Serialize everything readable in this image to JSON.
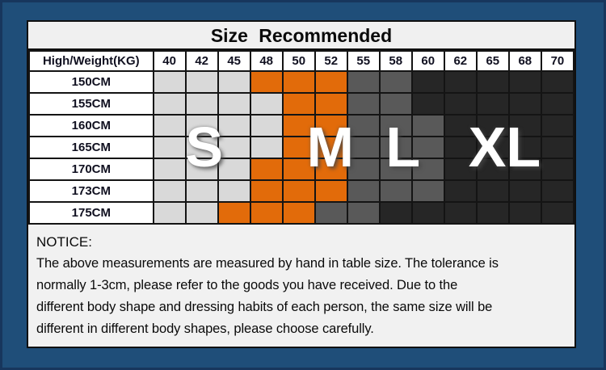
{
  "chart_data": {
    "type": "table",
    "title": "Size Recommended",
    "corner_label": "High/Weight(KG)",
    "weight_columns_kg": [
      "40",
      "42",
      "45",
      "48",
      "50",
      "52",
      "55",
      "58",
      "60",
      "62",
      "65",
      "68",
      "70"
    ],
    "height_rows": [
      "150CM",
      "155CM",
      "160CM",
      "165CM",
      "170CM",
      "173CM",
      "175CM"
    ],
    "size_matrix": [
      [
        "S",
        "S",
        "S",
        "M",
        "M",
        "M",
        "L",
        "L",
        "XL",
        "XL",
        "XL",
        "XL",
        "XL"
      ],
      [
        "S",
        "S",
        "S",
        "S",
        "M",
        "M",
        "L",
        "L",
        "XL",
        "XL",
        "XL",
        "XL",
        "XL"
      ],
      [
        "S",
        "S",
        "S",
        "S",
        "M",
        "M",
        "L",
        "L",
        "L",
        "XL",
        "XL",
        "XL",
        "XL"
      ],
      [
        "S",
        "S",
        "S",
        "S",
        "M",
        "M",
        "L",
        "L",
        "L",
        "XL",
        "XL",
        "XL",
        "XL"
      ],
      [
        "S",
        "S",
        "S",
        "M",
        "M",
        "M",
        "L",
        "L",
        "L",
        "XL",
        "XL",
        "XL",
        "XL"
      ],
      [
        "S",
        "S",
        "S",
        "M",
        "M",
        "M",
        "L",
        "L",
        "L",
        "XL",
        "XL",
        "XL",
        "XL"
      ],
      [
        "S",
        "S",
        "M",
        "M",
        "M",
        "L",
        "L",
        "XL",
        "XL",
        "XL",
        "XL",
        "XL",
        "XL"
      ]
    ],
    "size_overlay_labels": [
      "S",
      "M",
      "L",
      "XL"
    ],
    "size_colors": {
      "S": "#d9d9d9",
      "M": "#e26b0a",
      "L": "#595959",
      "XL": "#262626"
    }
  },
  "notice": {
    "heading": "NOTICE:",
    "lines": [
      "The above measurements are measured by hand in table size. The tolerance is",
      "normally 1-3cm, please refer to the goods you have received. Due to the",
      "different body shape and dressing habits of each person, the same size will be",
      "different in different body shapes, please choose carefully."
    ]
  },
  "colors": {
    "frame": "#1f4e79",
    "frame_edge": "#17365d",
    "panel": "#f1f1f1",
    "cell_border": "#141414",
    "letter": "#ffffff"
  }
}
